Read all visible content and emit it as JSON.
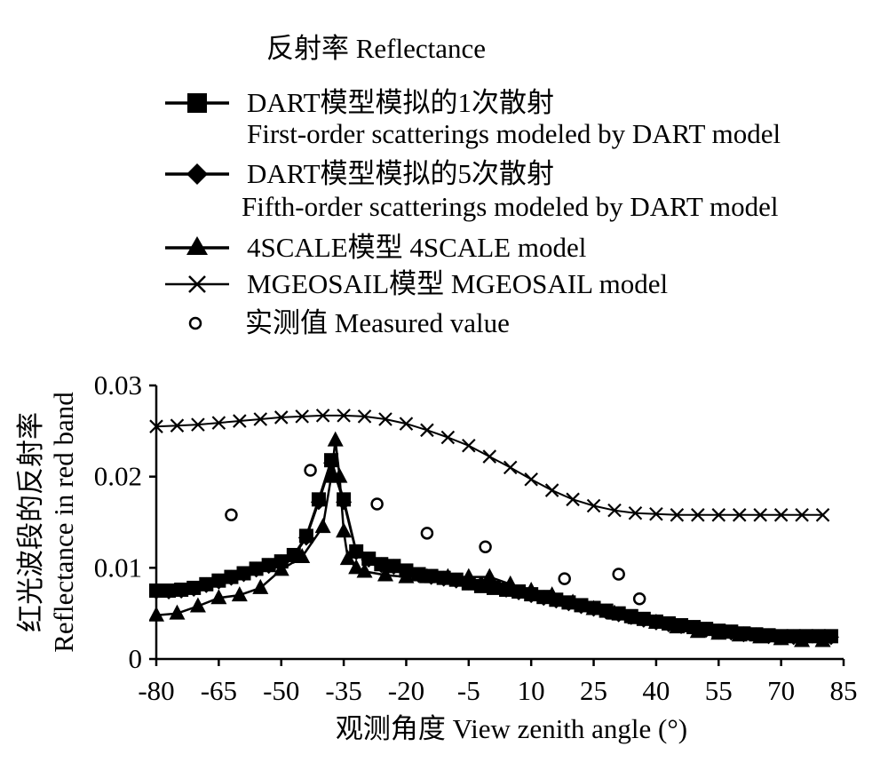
{
  "chart_data": {
    "type": "line",
    "legend_title": "反射率 Reflectance",
    "legend_position": "top",
    "xlabel": "观测角度 View zenith angle (°)",
    "ylabel_line1": "红光波段的反射率",
    "ylabel_line2": "Reflectance in red band",
    "xlim": [
      -80,
      85
    ],
    "ylim": [
      0,
      0.03
    ],
    "xticks": [
      -80,
      -65,
      -50,
      -35,
      -20,
      -5,
      10,
      25,
      40,
      55,
      70,
      85
    ],
    "yticks": [
      0,
      0.01,
      0.02,
      0.03
    ],
    "ytick_labels": [
      "0",
      "0.01",
      "0.02",
      "0.03"
    ],
    "grid": false,
    "series": [
      {
        "name_line1": "DART模型模拟的1次散射",
        "name_line2": "First-order scatterings modeled by DART model",
        "marker": "square",
        "x": [
          -80,
          -77,
          -74,
          -71,
          -68,
          -65,
          -62,
          -59,
          -56,
          -53,
          -50,
          -47,
          -44,
          -41,
          -38,
          -35,
          -32,
          -29,
          -26,
          -23,
          -20,
          -17,
          -14,
          -11,
          -8,
          -5,
          -2,
          1,
          4,
          7,
          10,
          13,
          16,
          19,
          22,
          25,
          28,
          31,
          34,
          37,
          40,
          43,
          46,
          49,
          52,
          55,
          58,
          61,
          64,
          67,
          70,
          73,
          76,
          79,
          82
        ],
        "y": [
          0.0075,
          0.0075,
          0.0076,
          0.0078,
          0.0082,
          0.0086,
          0.009,
          0.0094,
          0.0099,
          0.0103,
          0.0107,
          0.0114,
          0.0135,
          0.0175,
          0.0218,
          0.0175,
          0.0118,
          0.011,
          0.0104,
          0.0102,
          0.0097,
          0.0093,
          0.0091,
          0.0089,
          0.0087,
          0.0083,
          0.008,
          0.0078,
          0.0076,
          0.0074,
          0.0071,
          0.0068,
          0.0065,
          0.0062,
          0.0059,
          0.0056,
          0.0053,
          0.005,
          0.0047,
          0.0044,
          0.0041,
          0.0039,
          0.0037,
          0.0035,
          0.0033,
          0.0031,
          0.003,
          0.0028,
          0.0027,
          0.0026,
          0.0025,
          0.0025,
          0.0025,
          0.0025,
          0.0025
        ]
      },
      {
        "name_line1": "DART模型模拟的5次散射",
        "name_line2": "Fifth-order scatterings modeled by DART model",
        "marker": "diamond",
        "x": [
          -80,
          -77,
          -74,
          -71,
          -68,
          -65,
          -62,
          -59,
          -56,
          -53,
          -50,
          -47,
          -44,
          -41,
          -38,
          -35,
          -32,
          -29,
          -26,
          -23,
          -20,
          -17,
          -14,
          -11,
          -8,
          -5,
          -2,
          1,
          4,
          7,
          10,
          13,
          16,
          19,
          22,
          25,
          28,
          31,
          34,
          37,
          40,
          43,
          46,
          49,
          52,
          55,
          58,
          61,
          64,
          67,
          70,
          73,
          76,
          79,
          82
        ],
        "y": [
          0.0074,
          0.0074,
          0.0075,
          0.0077,
          0.0081,
          0.0085,
          0.0089,
          0.0093,
          0.0098,
          0.0102,
          0.0106,
          0.0113,
          0.0133,
          0.0172,
          0.0215,
          0.0172,
          0.0117,
          0.0109,
          0.0103,
          0.0101,
          0.0096,
          0.0092,
          0.009,
          0.0088,
          0.0086,
          0.0084,
          0.0082,
          0.0079,
          0.0076,
          0.0073,
          0.007,
          0.0067,
          0.0064,
          0.0061,
          0.0058,
          0.0055,
          0.0052,
          0.0049,
          0.0046,
          0.0043,
          0.004,
          0.0038,
          0.0036,
          0.0034,
          0.0032,
          0.003,
          0.0029,
          0.0027,
          0.0026,
          0.0025,
          0.0024,
          0.0024,
          0.0024,
          0.0024,
          0.0024
        ]
      },
      {
        "name": "4SCALE模型 4SCALE model",
        "marker": "triangle",
        "x": [
          -80,
          -75,
          -70,
          -65,
          -60,
          -55,
          -50,
          -45,
          -40,
          -38,
          -37,
          -36,
          -35,
          -34,
          -32,
          -30,
          -25,
          -20,
          -15,
          -10,
          -5,
          0,
          5,
          10,
          15,
          20,
          25,
          30,
          35,
          40,
          45,
          50,
          55,
          60,
          65,
          70,
          75,
          80
        ],
        "y": [
          0.0048,
          0.005,
          0.0058,
          0.0067,
          0.007,
          0.0078,
          0.0098,
          0.0112,
          0.0145,
          0.02,
          0.024,
          0.02,
          0.014,
          0.011,
          0.01,
          0.0096,
          0.0092,
          0.009,
          0.009,
          0.009,
          0.009,
          0.009,
          0.0082,
          0.0075,
          0.007,
          0.0062,
          0.0055,
          0.005,
          0.0045,
          0.004,
          0.0035,
          0.003,
          0.0028,
          0.0026,
          0.0024,
          0.0022,
          0.002,
          0.002
        ]
      },
      {
        "name": "MGEOSAIL模型 MGEOSAIL model",
        "marker": "x",
        "x": [
          -80,
          -75,
          -70,
          -65,
          -60,
          -55,
          -50,
          -45,
          -40,
          -35,
          -30,
          -25,
          -20,
          -15,
          -10,
          -5,
          0,
          5,
          10,
          15,
          20,
          25,
          30,
          35,
          40,
          45,
          50,
          55,
          60,
          65,
          70,
          75,
          80
        ],
        "y": [
          0.0255,
          0.0256,
          0.0257,
          0.0259,
          0.0261,
          0.0263,
          0.0265,
          0.0266,
          0.0267,
          0.0267,
          0.0266,
          0.0263,
          0.0258,
          0.0251,
          0.0243,
          0.0234,
          0.0222,
          0.021,
          0.0197,
          0.0185,
          0.0175,
          0.0168,
          0.0163,
          0.016,
          0.0159,
          0.0158,
          0.0158,
          0.0158,
          0.0158,
          0.0158,
          0.0158,
          0.0158,
          0.0158
        ]
      },
      {
        "name": "实测值 Measured value",
        "marker": "circle",
        "x": [
          -62,
          -43,
          -27,
          -15,
          -1,
          18,
          31,
          36
        ],
        "y": [
          0.0158,
          0.0207,
          0.017,
          0.0138,
          0.0123,
          0.0088,
          0.0093,
          0.0066
        ]
      }
    ]
  }
}
